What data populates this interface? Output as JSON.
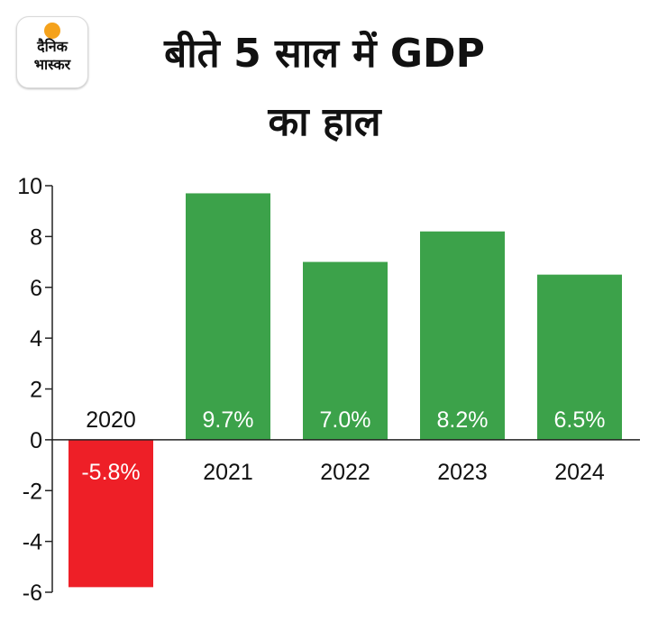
{
  "logo": {
    "line1": "दैनिक",
    "line2": "भास्कर",
    "sun_color": "#f5a21b"
  },
  "title": {
    "line1": "बीते 5 साल में GDP",
    "line2": "का हाल"
  },
  "colors": {
    "positive": "#3ca24a",
    "negative": "#ee1f27",
    "axis": "#222222"
  },
  "chart_data": {
    "type": "bar",
    "title": "बीते 5 साल में GDP का हाल",
    "categories": [
      "2020",
      "2021",
      "2022",
      "2023",
      "2024"
    ],
    "values": [
      -5.8,
      9.7,
      7.0,
      8.2,
      6.5
    ],
    "value_labels": [
      "-5.8%",
      "9.7%",
      "7.0%",
      "8.2%",
      "6.5%"
    ],
    "ylim": [
      -6,
      10
    ],
    "yticks": [
      10,
      8,
      6,
      4,
      2,
      0,
      -2,
      -4,
      -6
    ],
    "xlabel": "",
    "ylabel": "",
    "grid": false,
    "legend": "none"
  }
}
